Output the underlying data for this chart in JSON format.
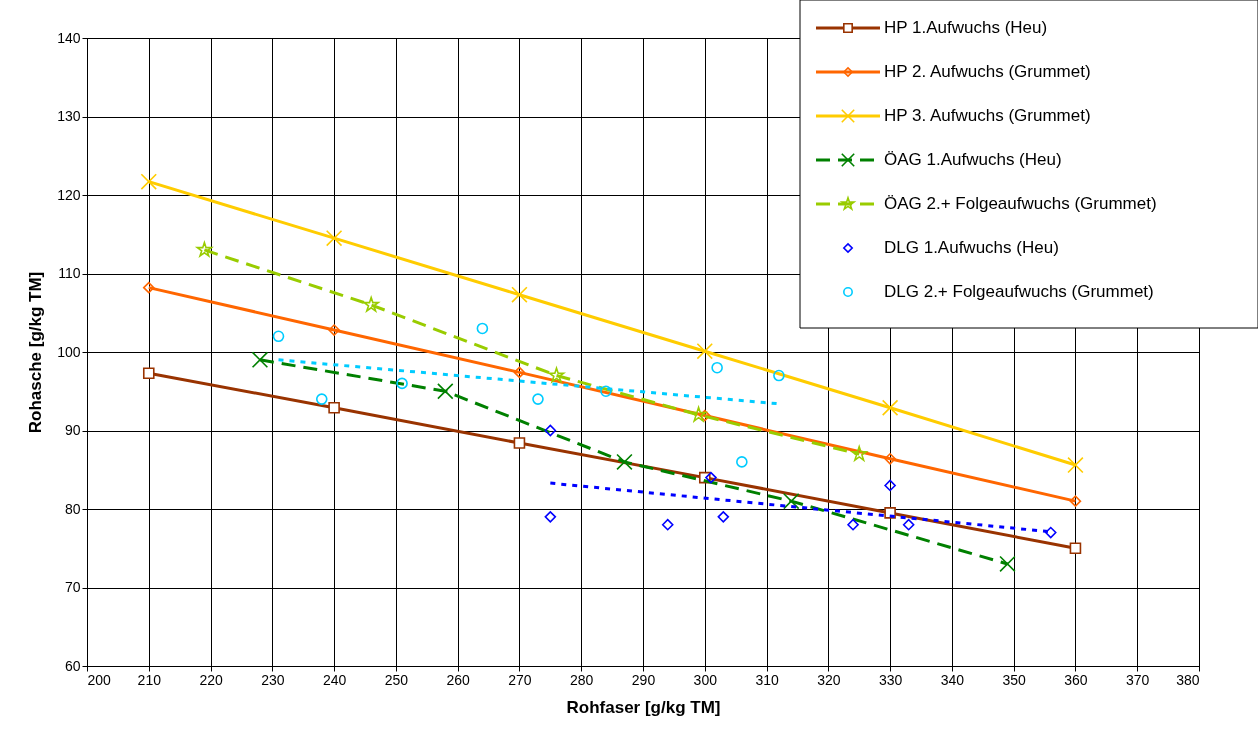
{
  "chart_data": {
    "type": "line",
    "xlabel": "Rohfaser [g/kg TM]",
    "ylabel": "Rohasche [g/kg TM]",
    "x": [
      210,
      240,
      270,
      300,
      330,
      360
    ],
    "xlim": [
      200,
      380
    ],
    "xticks": [
      200,
      210,
      220,
      230,
      240,
      250,
      260,
      270,
      280,
      290,
      300,
      310,
      320,
      330,
      340,
      350,
      360,
      370,
      380
    ],
    "ylim": [
      60,
      140
    ],
    "yticks": [
      60,
      70,
      80,
      90,
      100,
      110,
      120,
      130,
      140
    ],
    "grid": true,
    "legend": "top right",
    "series": [
      {
        "name": "HP 1.Aufwuchs (Heu)",
        "color": "#993300",
        "marker": "square",
        "line_style": "solid",
        "values": [
          97.3,
          92.9,
          88.4,
          84.0,
          79.5,
          75.0
        ]
      },
      {
        "name": "HP 2. Aufwuchs (Grummet)",
        "color": "#ff6600",
        "marker": "diamond",
        "line_style": "solid",
        "values": [
          108.2,
          102.8,
          97.4,
          91.9,
          86.4,
          81.0
        ]
      },
      {
        "name": "HP 3. Aufwuchs (Grummet)",
        "color": "#ffcc00",
        "marker": "cross",
        "line_style": "solid",
        "values": [
          121.7,
          114.5,
          107.3,
          100.1,
          92.9,
          85.6
        ]
      },
      {
        "name": "ÖAG 1.Aufwuchs (Heu)",
        "color": "#008000",
        "marker": "cross",
        "line_style": "dashed",
        "x": [
          228,
          258,
          287,
          314,
          349
        ],
        "values": [
          99,
          95,
          86,
          81,
          73
        ]
      },
      {
        "name": "ÖAG 2.+ Folgeaufwuchs (Grummet)",
        "color": "#99cc00",
        "marker": "star",
        "line_style": "dashed",
        "x": [
          219,
          246,
          276,
          299,
          325
        ],
        "values": [
          113,
          106,
          97,
          92,
          87
        ]
      },
      {
        "name": "DLG 1.Aufwuchs (Heu)",
        "type": "scatter",
        "color": "#0000ff",
        "marker": "diamond",
        "x": [
          275,
          275,
          294,
          301,
          303,
          324,
          330,
          333,
          356
        ],
        "values": [
          90,
          79,
          78,
          84,
          79,
          78,
          83,
          78,
          77
        ]
      },
      {
        "name": "DLG 2.+ Folgeaufwuchs (Grummet)",
        "type": "scatter",
        "color": "#00ccff",
        "marker": "circle",
        "x": [
          231,
          238,
          251,
          264,
          273,
          284,
          302,
          306,
          312
        ],
        "values": [
          102,
          94,
          96,
          103,
          94,
          95,
          98,
          86,
          97
        ]
      },
      {
        "type": "line",
        "color": "#0000ff",
        "marker": "none",
        "line_style": "dotted",
        "x": [
          275,
          356
        ],
        "values": [
          83.3,
          77.1
        ]
      },
      {
        "type": "line",
        "color": "#00ccff",
        "marker": "none",
        "line_style": "dotted",
        "x": [
          231,
          312
        ],
        "values": [
          99.0,
          93.4
        ]
      }
    ]
  }
}
